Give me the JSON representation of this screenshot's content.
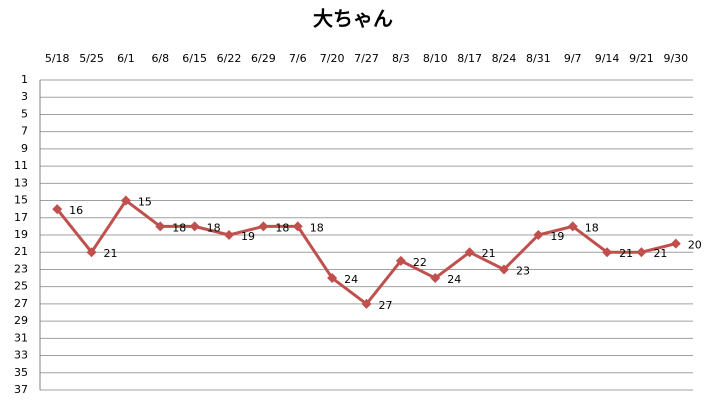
{
  "chart_data": {
    "type": "line",
    "title": "大ちゃん",
    "categories": [
      "5/18",
      "5/25",
      "6/1",
      "6/8",
      "6/15",
      "6/22",
      "6/29",
      "7/6",
      "7/20",
      "7/27",
      "8/3",
      "8/10",
      "8/17",
      "8/24",
      "8/31",
      "9/7",
      "9/14",
      "9/21",
      "9/30"
    ],
    "values": [
      16,
      21,
      15,
      18,
      18,
      19,
      18,
      18,
      24,
      27,
      22,
      24,
      21,
      23,
      19,
      18,
      21,
      21,
      20
    ],
    "color": "#c0504d",
    "ylim": [
      1,
      37
    ],
    "y_inverted": true,
    "yticks": [
      1,
      3,
      5,
      7,
      9,
      11,
      13,
      15,
      17,
      19,
      21,
      23,
      25,
      27,
      29,
      31,
      33,
      35,
      37
    ],
    "grid": true,
    "x_axis_position": "top"
  }
}
